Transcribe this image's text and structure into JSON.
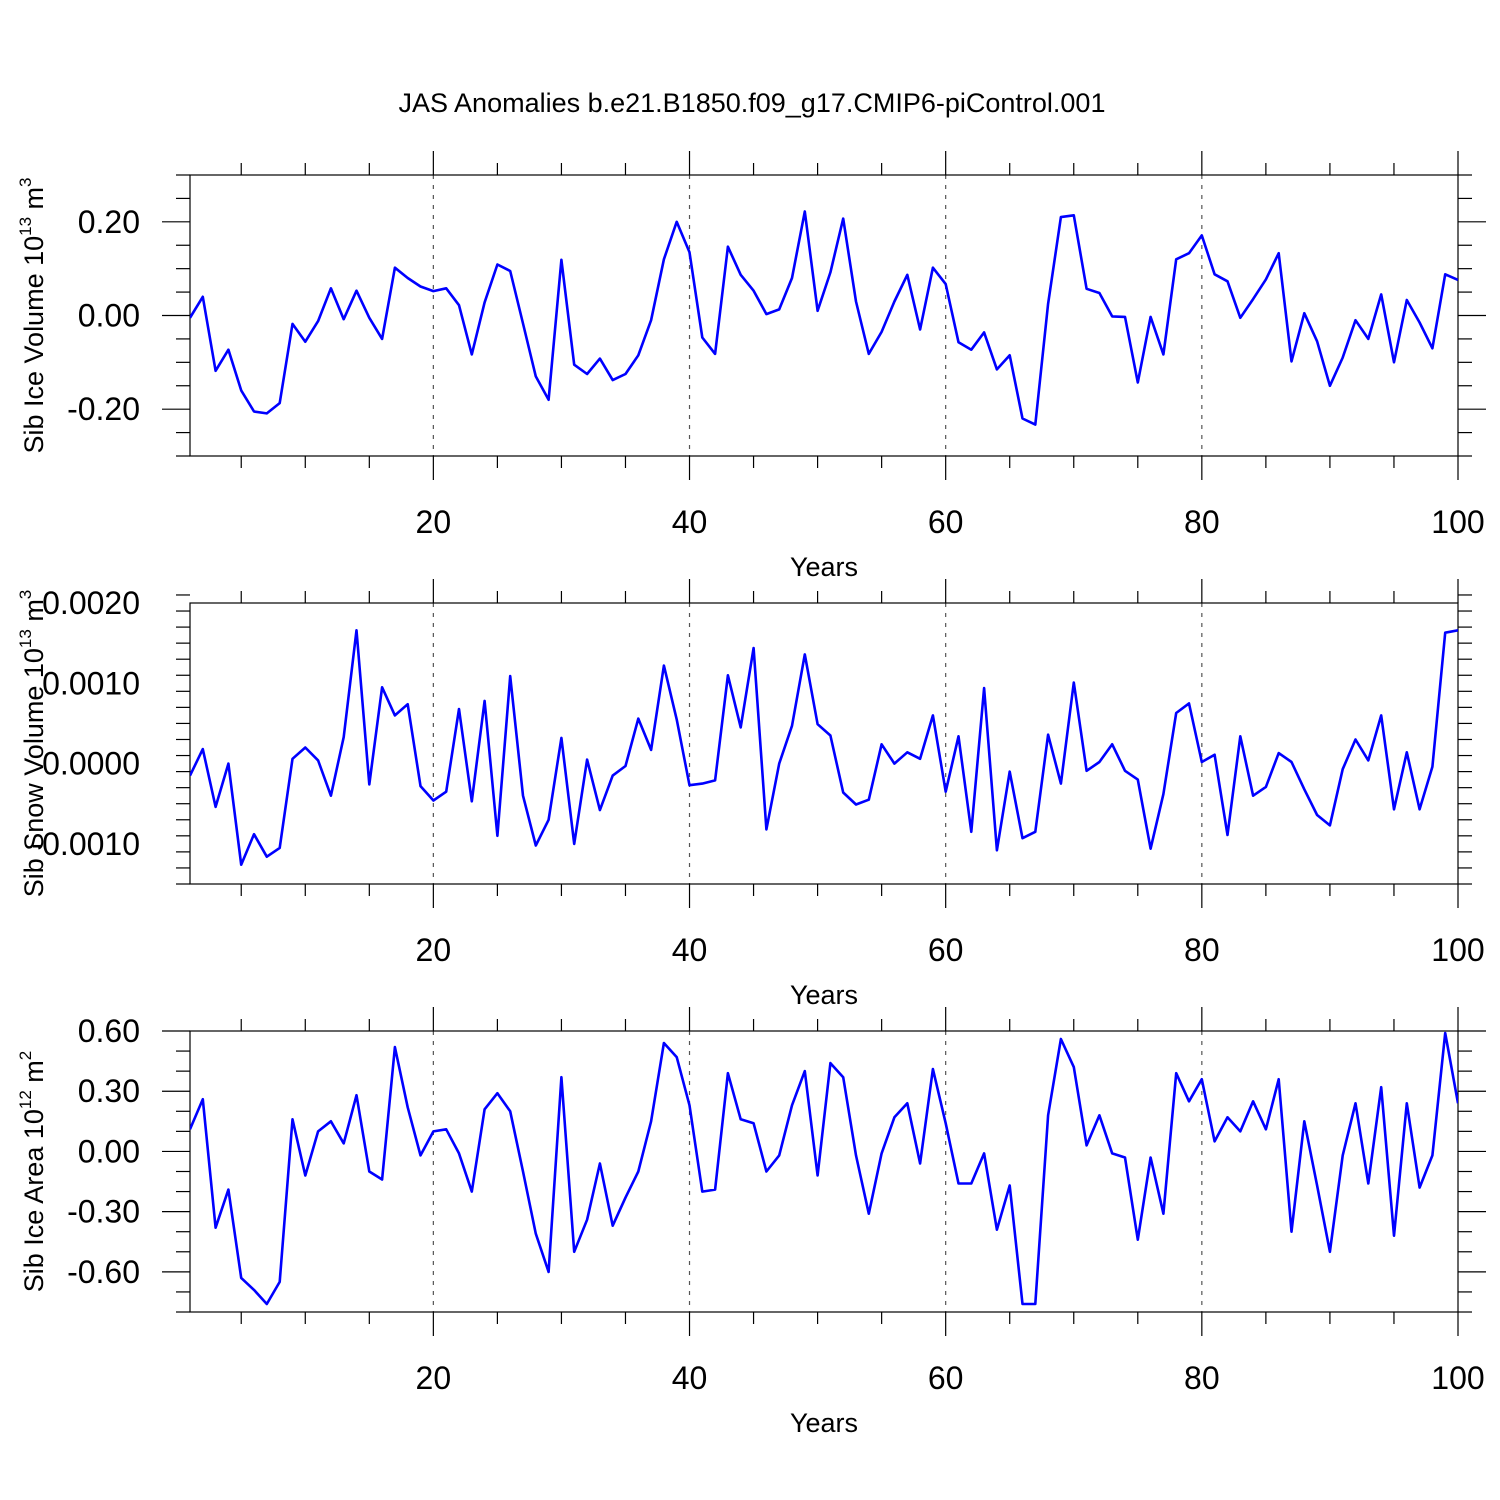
{
  "title": "JAS Anomalies b.e21.B1850.f09_g17.CMIP6-piControl.001",
  "colors": {
    "series": "#0000ff",
    "axes": "#000000",
    "grid": "#555555"
  },
  "chart_data": [
    {
      "type": "line",
      "ylabel": "Sib Ice Volume 10",
      "ylabel_sup": "13",
      "ylabel_unit": " m",
      "ylabel_unit_sup": "3",
      "xlabel": "Years",
      "xlim": [
        1,
        100
      ],
      "ylim": [
        -0.3,
        0.3
      ],
      "xticks": [
        20,
        40,
        60,
        80,
        100
      ],
      "xtick_labels": [
        "20",
        "40",
        "60",
        "80",
        "100"
      ],
      "yticks": [
        -0.2,
        0.0,
        0.2
      ],
      "ytick_labels": [
        "-0.20",
        "0.00",
        "0.20"
      ],
      "y_minor_step": 0.05,
      "grid_x": true,
      "x": [
        1,
        2,
        3,
        4,
        5,
        6,
        7,
        8,
        9,
        10,
        11,
        12,
        13,
        14,
        15,
        16,
        17,
        18,
        19,
        20,
        21,
        22,
        23,
        24,
        25,
        26,
        27,
        28,
        29,
        30,
        31,
        32,
        33,
        34,
        35,
        36,
        37,
        38,
        39,
        40,
        41,
        42,
        43,
        44,
        45,
        46,
        47,
        48,
        49,
        50,
        51,
        52,
        53,
        54,
        55,
        56,
        57,
        58,
        59,
        60,
        61,
        62,
        63,
        64,
        65,
        66,
        67,
        68,
        69,
        70,
        71,
        72,
        73,
        74,
        75,
        76,
        77,
        78,
        79,
        80,
        81,
        82,
        83,
        84,
        85,
        86,
        87,
        88,
        89,
        90,
        91,
        92,
        93,
        94,
        95,
        96,
        97,
        98,
        99,
        100
      ],
      "values": [
        -0.005,
        0.04,
        -0.118,
        -0.073,
        -0.16,
        -0.205,
        -0.209,
        -0.187,
        -0.018,
        -0.056,
        -0.012,
        0.058,
        -0.008,
        0.053,
        -0.005,
        -0.05,
        0.102,
        0.08,
        0.062,
        0.052,
        0.058,
        0.022,
        -0.083,
        0.028,
        0.109,
        0.095,
        -0.017,
        -0.13,
        -0.18,
        0.119,
        -0.105,
        -0.125,
        -0.092,
        -0.138,
        -0.125,
        -0.085,
        -0.01,
        0.12,
        0.2,
        0.135,
        -0.047,
        -0.082,
        0.147,
        0.087,
        0.053,
        0.003,
        0.013,
        0.08,
        0.222,
        0.01,
        0.092,
        0.207,
        0.03,
        -0.082,
        -0.035,
        0.03,
        0.087,
        -0.03,
        0.102,
        0.067,
        -0.057,
        -0.073,
        -0.036,
        -0.115,
        -0.085,
        -0.22,
        -0.233,
        0.025,
        0.21,
        0.214,
        0.057,
        0.048,
        -0.002,
        -0.003,
        -0.143,
        -0.003,
        -0.083,
        0.12,
        0.133,
        0.171,
        0.088,
        0.073,
        -0.005,
        0.035,
        0.077,
        0.133,
        -0.098,
        0.005,
        -0.055,
        -0.15,
        -0.09,
        -0.01,
        -0.05,
        0.045,
        -0.1,
        0.033,
        -0.015,
        -0.07,
        0.088,
        0.076
      ]
    },
    {
      "type": "line",
      "ylabel": "Sib Snow Volume 10",
      "ylabel_sup": "13",
      "ylabel_unit": " m",
      "ylabel_unit_sup": "3",
      "xlabel": "Years",
      "xlim": [
        1,
        100
      ],
      "ylim": [
        -0.0015,
        0.002
      ],
      "xticks": [
        20,
        40,
        60,
        80,
        100
      ],
      "xtick_labels": [
        "20",
        "40",
        "60",
        "80",
        "100"
      ],
      "yticks": [
        -0.001,
        0.0,
        0.001,
        0.002
      ],
      "ytick_labels": [
        "-0.0010",
        "0.0000",
        "0.0010",
        "0.0020"
      ],
      "y_minor_step": 0.0002,
      "grid_x": true,
      "x": [
        1,
        2,
        3,
        4,
        5,
        6,
        7,
        8,
        9,
        10,
        11,
        12,
        13,
        14,
        15,
        16,
        17,
        18,
        19,
        20,
        21,
        22,
        23,
        24,
        25,
        26,
        27,
        28,
        29,
        30,
        31,
        32,
        33,
        34,
        35,
        36,
        37,
        38,
        39,
        40,
        41,
        42,
        43,
        44,
        45,
        46,
        47,
        48,
        49,
        50,
        51,
        52,
        53,
        54,
        55,
        56,
        57,
        58,
        59,
        60,
        61,
        62,
        63,
        64,
        65,
        66,
        67,
        68,
        69,
        70,
        71,
        72,
        73,
        74,
        75,
        76,
        77,
        78,
        79,
        80,
        81,
        82,
        83,
        84,
        85,
        86,
        87,
        88,
        89,
        90,
        91,
        92,
        93,
        94,
        95,
        96,
        97,
        98,
        99,
        100
      ],
      "values": [
        -0.00015,
        0.00018,
        -0.00054,
        0.0,
        -0.00126,
        -0.00088,
        -0.00116,
        -0.00105,
        6e-05,
        0.0002,
        4e-05,
        -0.0004,
        0.00033,
        0.00166,
        -0.00026,
        0.00095,
        0.0006,
        0.00074,
        -0.00028,
        -0.00046,
        -0.00035,
        0.00068,
        -0.00047,
        0.00078,
        -0.0009,
        0.00109,
        -0.0004,
        -0.00102,
        -0.0007,
        0.00032,
        -0.001,
        5e-05,
        -0.00058,
        -0.00015,
        -3e-05,
        0.00056,
        0.00017,
        0.00122,
        0.00055,
        -0.00027,
        -0.00025,
        -0.00021,
        0.0011,
        0.00045,
        0.00144,
        -0.00082,
        0.0,
        0.00047,
        0.00136,
        0.00049,
        0.00035,
        -0.00036,
        -0.00051,
        -0.00045,
        0.00024,
        0.0,
        0.00014,
        6e-05,
        0.0006,
        -0.00035,
        0.00034,
        -0.00085,
        0.00094,
        -0.00108,
        -0.0001,
        -0.00093,
        -0.00085,
        0.00036,
        -0.00025,
        0.00101,
        -9e-05,
        2e-05,
        0.00024,
        -9e-05,
        -0.0002,
        -0.00106,
        -0.00038,
        0.00063,
        0.00075,
        2e-05,
        0.00011,
        -0.00089,
        0.00034,
        -0.0004,
        -0.00029,
        0.00013,
        2e-05,
        -0.00032,
        -0.00064,
        -0.00077,
        -7e-05,
        0.0003,
        4e-05,
        0.0006,
        -0.00057,
        0.00014,
        -0.00057,
        -4e-05,
        0.00163,
        0.00166
      ]
    },
    {
      "type": "line",
      "ylabel": "Sib Ice Area 10",
      "ylabel_sup": "12",
      "ylabel_unit": " m",
      "ylabel_unit_sup": "2",
      "xlabel": "Years",
      "xlim": [
        1,
        100
      ],
      "ylim": [
        -0.8,
        0.6
      ],
      "xticks": [
        20,
        40,
        60,
        80,
        100
      ],
      "xtick_labels": [
        "20",
        "40",
        "60",
        "80",
        "100"
      ],
      "yticks": [
        -0.6,
        -0.3,
        0.0,
        0.3,
        0.6
      ],
      "ytick_labels": [
        "-0.60",
        "-0.30",
        "0.00",
        "0.30",
        "0.60"
      ],
      "y_minor_step": 0.1,
      "grid_x": true,
      "x": [
        1,
        2,
        3,
        4,
        5,
        6,
        7,
        8,
        9,
        10,
        11,
        12,
        13,
        14,
        15,
        16,
        17,
        18,
        19,
        20,
        21,
        22,
        23,
        24,
        25,
        26,
        27,
        28,
        29,
        30,
        31,
        32,
        33,
        34,
        35,
        36,
        37,
        38,
        39,
        40,
        41,
        42,
        43,
        44,
        45,
        46,
        47,
        48,
        49,
        50,
        51,
        52,
        53,
        54,
        55,
        56,
        57,
        58,
        59,
        60,
        61,
        62,
        63,
        64,
        65,
        66,
        67,
        68,
        69,
        70,
        71,
        72,
        73,
        74,
        75,
        76,
        77,
        78,
        79,
        80,
        81,
        82,
        83,
        84,
        85,
        86,
        87,
        88,
        89,
        90,
        91,
        92,
        93,
        94,
        95,
        96,
        97,
        98,
        99,
        100
      ],
      "values": [
        0.11,
        0.26,
        -0.38,
        -0.19,
        -0.63,
        -0.69,
        -0.76,
        -0.65,
        0.16,
        -0.12,
        0.1,
        0.15,
        0.04,
        0.28,
        -0.1,
        -0.14,
        0.52,
        0.22,
        -0.02,
        0.1,
        0.11,
        -0.01,
        -0.2,
        0.21,
        0.29,
        0.2,
        -0.1,
        -0.41,
        -0.6,
        0.37,
        -0.5,
        -0.34,
        -0.06,
        -0.37,
        -0.23,
        -0.1,
        0.15,
        0.54,
        0.47,
        0.23,
        -0.2,
        -0.19,
        0.39,
        0.16,
        0.14,
        -0.1,
        -0.02,
        0.23,
        0.4,
        -0.12,
        0.44,
        0.37,
        -0.02,
        -0.31,
        -0.01,
        0.17,
        0.24,
        -0.06,
        0.41,
        0.14,
        -0.16,
        -0.16,
        -0.01,
        -0.39,
        -0.17,
        -0.76,
        -0.76,
        0.18,
        0.56,
        0.42,
        0.03,
        0.18,
        -0.01,
        -0.03,
        -0.44,
        -0.03,
        -0.31,
        0.39,
        0.25,
        0.36,
        0.05,
        0.17,
        0.1,
        0.25,
        0.11,
        0.36,
        -0.4,
        0.15,
        -0.17,
        -0.5,
        -0.02,
        0.24,
        -0.16,
        0.32,
        -0.42,
        0.24,
        -0.18,
        -0.02,
        0.59,
        0.24
      ]
    }
  ]
}
